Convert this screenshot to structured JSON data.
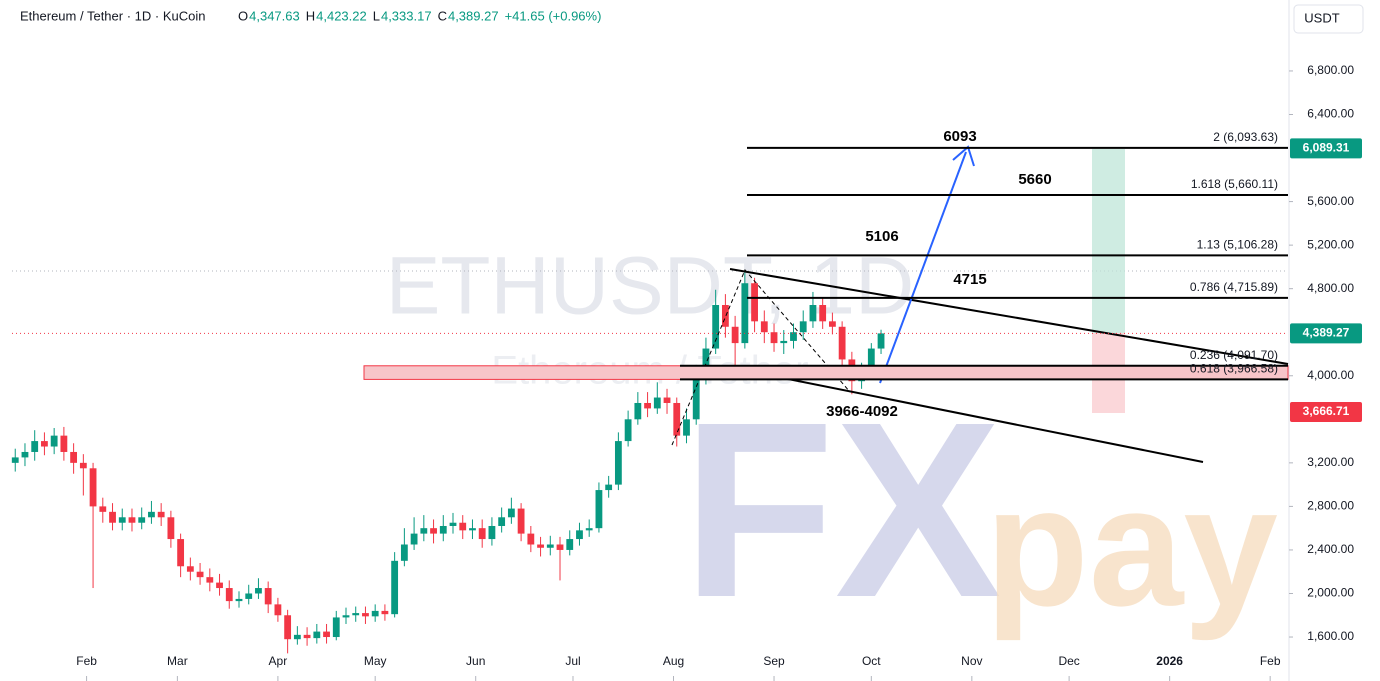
{
  "header": {
    "symbol": "Ethereum / Tether · 1D · KuCoin",
    "ohlc": [
      {
        "label": "O",
        "value": "4,347.63"
      },
      {
        "label": "H",
        "value": "4,423.22"
      },
      {
        "label": "L",
        "value": "4,333.17"
      },
      {
        "label": "C",
        "value": "4,389.27"
      }
    ],
    "change": "+41.65 (+0.96%)",
    "currency": "USDT"
  },
  "watermark": {
    "title": "ETHUSDT, 1D",
    "subtitle": "Ethereum / Tether",
    "logo": [
      "FX",
      "pay"
    ]
  },
  "chart_data": {
    "type": "candlestick",
    "up_color": "#089981",
    "down_color": "#f23645",
    "xlim": [
      8,
      401.5
    ],
    "ylim": [
      1389,
      7415
    ],
    "xticks": [
      {
        "value": 31,
        "label": "Feb"
      },
      {
        "value": 59,
        "label": "Mar"
      },
      {
        "value": 90,
        "label": "Apr"
      },
      {
        "value": 120,
        "label": "May"
      },
      {
        "value": 151,
        "label": "Jun"
      },
      {
        "value": 181,
        "label": "Jul"
      },
      {
        "value": 212,
        "label": "Aug"
      },
      {
        "value": 243,
        "label": "Sep"
      },
      {
        "value": 273,
        "label": "Oct"
      },
      {
        "value": 304,
        "label": "Nov"
      },
      {
        "value": 334,
        "label": "Dec"
      },
      {
        "value": 365,
        "label": "2026"
      },
      {
        "value": 396,
        "label": "Feb"
      }
    ],
    "yticks": [
      {
        "value": 1600,
        "label": "1,600.00"
      },
      {
        "value": 2000,
        "label": "2,000.00"
      },
      {
        "value": 2400,
        "label": "2,400.00"
      },
      {
        "value": 2800,
        "label": "2,800.00"
      },
      {
        "value": 3200,
        "label": "3,200.00"
      },
      {
        "value": 4000,
        "label": "4,000.00"
      },
      {
        "value": 4800,
        "label": "4,800.00"
      },
      {
        "value": 5200,
        "label": "5,200.00"
      },
      {
        "value": 5600,
        "label": "5,600.00"
      },
      {
        "value": 6400,
        "label": "6,400.00"
      },
      {
        "value": 6800,
        "label": "6,800.00"
      }
    ],
    "x": [
      9,
      12,
      15,
      18,
      21,
      24,
      27,
      30,
      33,
      36,
      39,
      42,
      45,
      48,
      51,
      54,
      57,
      60,
      63,
      66,
      69,
      72,
      75,
      78,
      81,
      84,
      87,
      90,
      93,
      96,
      99,
      102,
      105,
      108,
      111,
      114,
      117,
      120,
      123,
      126,
      129,
      132,
      135,
      138,
      141,
      144,
      147,
      150,
      153,
      156,
      159,
      162,
      165,
      168,
      171,
      174,
      177,
      180,
      183,
      186,
      189,
      192,
      195,
      198,
      201,
      204,
      207,
      210,
      213,
      216,
      219,
      222,
      225,
      228,
      231,
      234,
      237,
      240,
      243,
      246,
      249,
      252,
      255,
      258,
      261,
      264,
      267,
      270,
      273,
      276
    ],
    "open": [
      3200,
      3250,
      3300,
      3400,
      3350,
      3450,
      3300,
      3200,
      3150,
      2800,
      2750,
      2650,
      2700,
      2650,
      2700,
      2750,
      2700,
      2500,
      2250,
      2200,
      2150,
      2100,
      2050,
      1930,
      1950,
      2000,
      2050,
      1900,
      1800,
      1580,
      1620,
      1590,
      1650,
      1600,
      1780,
      1800,
      1820,
      1790,
      1840,
      1810,
      2300,
      2450,
      2550,
      2600,
      2550,
      2620,
      2650,
      2580,
      2600,
      2500,
      2620,
      2700,
      2780,
      2550,
      2450,
      2420,
      2450,
      2400,
      2500,
      2580,
      2600,
      2950,
      3000,
      3400,
      3600,
      3750,
      3700,
      3800,
      3750,
      3450,
      3600,
      4000,
      4250,
      4650,
      4450,
      4300,
      4850,
      4500,
      4400,
      4300,
      4320,
      4400,
      4500,
      4650,
      4500,
      4450,
      4150,
      3950,
      4050,
      4250
    ],
    "high": [
      3330,
      3380,
      3500,
      3480,
      3520,
      3530,
      3380,
      3280,
      3200,
      2880,
      2830,
      2780,
      2780,
      2790,
      2850,
      2830,
      2760,
      2550,
      2330,
      2280,
      2230,
      2180,
      2120,
      2020,
      2080,
      2140,
      2110,
      1960,
      1850,
      1700,
      1690,
      1720,
      1720,
      1840,
      1870,
      1880,
      1880,
      1900,
      1900,
      2380,
      2600,
      2700,
      2720,
      2680,
      2720,
      2740,
      2720,
      2680,
      2680,
      2700,
      2790,
      2880,
      2830,
      2620,
      2520,
      2530,
      2520,
      2580,
      2650,
      2680,
      3020,
      3080,
      3480,
      3680,
      3850,
      3850,
      3940,
      3880,
      3800,
      3700,
      4100,
      4350,
      4790,
      4750,
      4550,
      4950,
      4900,
      4600,
      4480,
      4420,
      4480,
      4600,
      4770,
      4720,
      4580,
      4500,
      4220,
      4120,
      4300,
      4423
    ],
    "low": [
      3120,
      3170,
      3220,
      3270,
      3280,
      3220,
      3100,
      2900,
      2050,
      2650,
      2580,
      2580,
      2570,
      2590,
      2640,
      2620,
      2420,
      2150,
      2120,
      2080,
      2020,
      1980,
      1860,
      1870,
      1900,
      1950,
      1820,
      1740,
      1450,
      1530,
      1520,
      1540,
      1540,
      1570,
      1720,
      1740,
      1720,
      1740,
      1750,
      1780,
      2250,
      2400,
      2480,
      2460,
      2480,
      2550,
      2500,
      2500,
      2420,
      2440,
      2560,
      2640,
      2480,
      2380,
      2340,
      2350,
      2120,
      2350,
      2440,
      2520,
      2560,
      2880,
      2950,
      3350,
      3550,
      3620,
      3650,
      3650,
      3350,
      3380,
      3550,
      3920,
      4200,
      4350,
      4060,
      4250,
      4400,
      4300,
      4220,
      4200,
      4250,
      4330,
      4440,
      4430,
      4380,
      4080,
      3830,
      3880,
      3980,
      4200
    ],
    "close": [
      3250,
      3300,
      3400,
      3350,
      3450,
      3300,
      3200,
      3150,
      2800,
      2750,
      2650,
      2700,
      2650,
      2700,
      2750,
      2700,
      2500,
      2250,
      2200,
      2150,
      2100,
      2050,
      1930,
      1950,
      2000,
      2050,
      1900,
      1800,
      1580,
      1620,
      1590,
      1650,
      1600,
      1780,
      1800,
      1820,
      1790,
      1840,
      1810,
      2300,
      2450,
      2550,
      2600,
      2550,
      2620,
      2650,
      2580,
      2600,
      2500,
      2620,
      2700,
      2780,
      2550,
      2450,
      2420,
      2450,
      2400,
      2500,
      2580,
      2600,
      2950,
      3000,
      3400,
      3600,
      3750,
      3700,
      3800,
      3750,
      3450,
      3600,
      4000,
      4250,
      4650,
      4450,
      4300,
      4850,
      4500,
      4400,
      4300,
      4320,
      4400,
      4500,
      4650,
      4500,
      4450,
      4150,
      3950,
      4050,
      4250,
      4389
    ],
    "fib_levels": [
      {
        "value": 6093.63,
        "label": "2 (6,093.63)"
      },
      {
        "value": 5660.11,
        "label": "1.618 (5,660.11)"
      },
      {
        "value": 5106.28,
        "label": "1.13 (5,106.28)"
      },
      {
        "value": 4715.89,
        "label": "0.786 (4,715.89)"
      },
      {
        "value": 4091.7,
        "label": "0.236 (4,091.70)"
      },
      {
        "value": 3966.58,
        "label": "0.618 (3,966.58)"
      }
    ],
    "price_labels": [
      {
        "value": 6089.31,
        "label": "6,089.31",
        "color": "#089981"
      },
      {
        "value": 4389.27,
        "label": "4,389.27",
        "color": "#089981"
      },
      {
        "value": 3666.71,
        "label": "3,666.71",
        "color": "#f23645"
      }
    ],
    "annotations": [
      "6093",
      "5660",
      "5106",
      "4715",
      "3966-4092"
    ]
  }
}
